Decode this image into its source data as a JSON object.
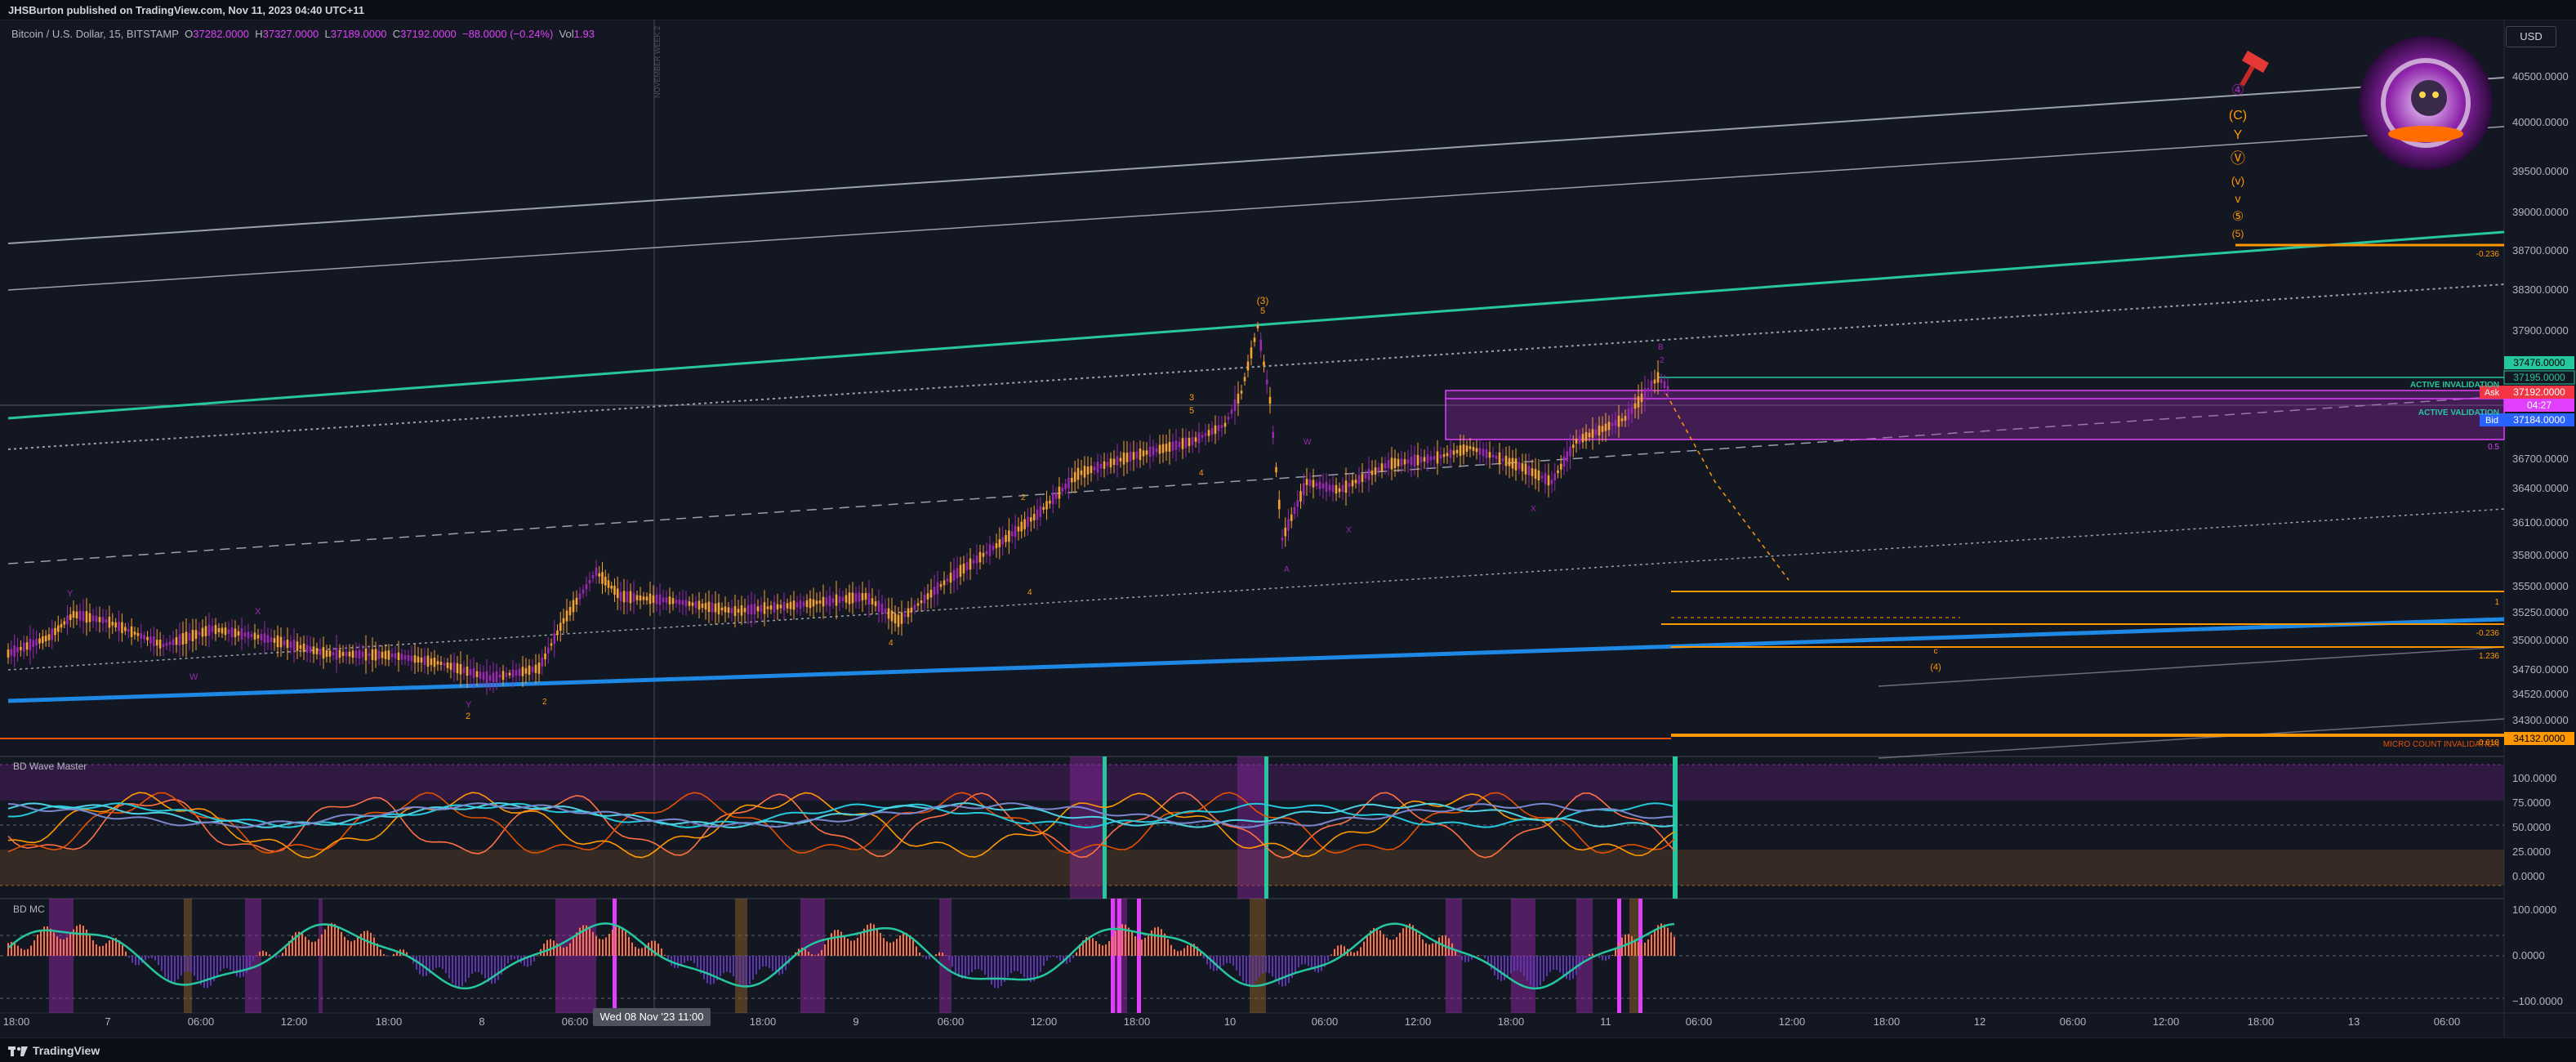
{
  "header": {
    "published_by": "JHSBurton published on TradingView.com, Nov 11, 2023 04:40 UTC+11"
  },
  "symbol": {
    "title": "Bitcoin / U.S. Dollar, 15, BITSTAMP",
    "open_label": "O",
    "open": "37282.0000",
    "high_label": "H",
    "high": "37327.0000",
    "low_label": "L",
    "low": "37189.0000",
    "close_label": "C",
    "close": "37192.0000",
    "change": "−88.0000 (−0.24%)",
    "vol_label": "Vol",
    "vol": "1.93"
  },
  "currency_button": "USD",
  "vertical_note": "NOVEMBER WEEK 2",
  "price_axis": {
    "ticks": [
      "40500.0000",
      "40000.0000",
      "39500.0000",
      "39000.0000",
      "38700.0000",
      "38300.0000",
      "37900.0000",
      "36700.0000",
      "36400.0000",
      "36100.0000",
      "35800.0000",
      "35500.0000",
      "35250.0000",
      "35000.0000",
      "34760.0000",
      "34520.0000",
      "34300.0000"
    ],
    "badges": {
      "green_top": "37476.0000",
      "green_mid": "37195.0000",
      "ask_label": "Ask",
      "ask": "37192.0000",
      "countdown": "04:27",
      "bid_label": "Bid",
      "bid": "37184.0000",
      "orange": "34132.0000"
    }
  },
  "indicator1": {
    "name": "BD Wave Master",
    "ticks": [
      "100.0000",
      "75.0000",
      "50.0000",
      "25.0000",
      "0.0000"
    ]
  },
  "indicator2": {
    "name": "BD MC",
    "ticks": [
      "100.0000",
      "0.0000",
      "−100.0000"
    ]
  },
  "time_axis": {
    "labels": [
      "18:00",
      "7",
      "06:00",
      "12:00",
      "18:00",
      "8",
      "06:00",
      "18:00",
      "9",
      "06:00",
      "12:00",
      "18:00",
      "10",
      "06:00",
      "12:00",
      "18:00",
      "11",
      "06:00",
      "12:00",
      "18:00",
      "12",
      "06:00",
      "12:00",
      "18:00",
      "13",
      "06:00"
    ],
    "cursor_label": "Wed 08 Nov '23   11:00"
  },
  "annotations": {
    "active_invalidation": "ACTIVE INVALIDATION",
    "active_validation": "ACTIVE VALIDATION",
    "micro_invalidation": "MICRO COUNT INVALIDATION",
    "fib_top": "-0.236",
    "fib_mid": "-0.236",
    "fib_low": "1.236",
    "fib_half": "0.5",
    "fib_one": "1",
    "fib_618": "0.618",
    "wave_labels_right": [
      "④",
      "(C)",
      "Y",
      "Ⓥ",
      "(v)",
      "v",
      "⑤",
      "(5)"
    ],
    "wave_3": "(3)",
    "wave_5": "5",
    "wave_4_target": "(4)",
    "wave_c": "c",
    "small": {
      "w1": "W",
      "x1": "X",
      "y1": "Y",
      "w2": "2",
      "y2": "Y",
      "z": "2",
      "a": "A",
      "b": "B",
      "w3": "W",
      "x3": "X",
      "b2": "B",
      "n2": "2",
      "n4a": "4",
      "n4b": "4",
      "n4c": "4",
      "n3": "3",
      "n5": "5",
      "b3": "B",
      "xq": "X",
      "n2b": "2"
    }
  },
  "footer": {
    "brand": "TradingView"
  },
  "colors": {
    "background": "#131722",
    "up_candle": "#f7a22d",
    "down_candle": "#9c27b0",
    "teal_line": "#26c6a0",
    "blue_line": "#1e88e5",
    "purple_zone": "#9c27b0",
    "orange_line": "#ff9800"
  }
}
